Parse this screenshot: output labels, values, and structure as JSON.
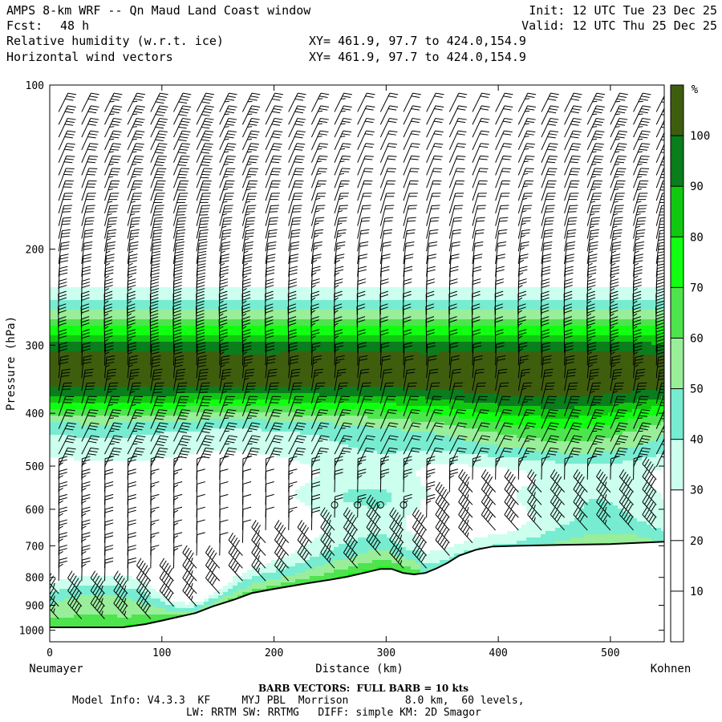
{
  "header": {
    "title": "AMPS 8-km WRF -- Qn Maud Land Coast window",
    "init": "Init: 12 UTC Tue 23 Dec 25",
    "fcst_label": "Fcst:",
    "fcst_value": "48 h",
    "valid": "Valid: 12 UTC Thu 25 Dec 25",
    "field1": "Relative humidity (w.r.t. ice)",
    "field1_xy": "XY= 461.9, 97.7 to 424.0,154.9",
    "field2": "Horizontal wind vectors",
    "field2_xy": "XY= 461.9, 97.7 to 424.0,154.9"
  },
  "chart_data": {
    "type": "heatmap",
    "title": "Relative humidity (w.r.t. ice) cross-section with horizontal wind vectors",
    "xlabel": "Distance (km)",
    "ylabel": "Pressure (hPa)",
    "x_range": [
      0,
      548
    ],
    "y_range": [
      100,
      1050
    ],
    "y_scale": "log",
    "x_ticks": [
      0,
      100,
      200,
      300,
      400,
      500
    ],
    "y_ticks": [
      100,
      200,
      300,
      400,
      500,
      600,
      700,
      800,
      900,
      1000
    ],
    "x_end_labels": {
      "left": "Neumayer",
      "right": "Kohnen"
    },
    "colorbar": {
      "unit": "%",
      "ticks": [
        10,
        20,
        30,
        40,
        50,
        60,
        70,
        80,
        90,
        100
      ],
      "bins": [
        {
          "min": 0,
          "max": 30,
          "color": "#ffffff"
        },
        {
          "min": 30,
          "max": 40,
          "color": "#ccffee"
        },
        {
          "min": 40,
          "max": 50,
          "color": "#77ecd0"
        },
        {
          "min": 50,
          "max": 60,
          "color": "#99ee99"
        },
        {
          "min": 60,
          "max": 70,
          "color": "#4ee44e"
        },
        {
          "min": 70,
          "max": 80,
          "color": "#11ff11"
        },
        {
          "min": 80,
          "max": 90,
          "color": "#11c811"
        },
        {
          "min": 90,
          "max": 100,
          "color": "#0a7d1c"
        },
        {
          "min": 100,
          "max": 110,
          "color": "#3e5e0e"
        }
      ]
    },
    "terrain_surface_hPa": [
      [
        0,
        988
      ],
      [
        65,
        988
      ],
      [
        85,
        975
      ],
      [
        100,
        960
      ],
      [
        115,
        945
      ],
      [
        130,
        930
      ],
      [
        145,
        905
      ],
      [
        165,
        878
      ],
      [
        180,
        855
      ],
      [
        200,
        840
      ],
      [
        215,
        830
      ],
      [
        230,
        820
      ],
      [
        250,
        808
      ],
      [
        265,
        798
      ],
      [
        280,
        785
      ],
      [
        295,
        772
      ],
      [
        305,
        772
      ],
      [
        315,
        785
      ],
      [
        325,
        790
      ],
      [
        335,
        785
      ],
      [
        345,
        770
      ],
      [
        355,
        752
      ],
      [
        365,
        730
      ],
      [
        380,
        712
      ],
      [
        395,
        702
      ],
      [
        420,
        700
      ],
      [
        460,
        697
      ],
      [
        500,
        695
      ],
      [
        548,
        688
      ]
    ],
    "wind_barb_note": "BARB VECTORS:  FULL BARB = 10 kts",
    "wind_barbs_summary": "Westerly barbs roughly 25-40 kts aloft (100-500 hPa), weaker winds mid-levels near 250-320 km with calm circles near 575-610 hPa, strong low-level easterlies 40-55 kts along the slope."
  },
  "footer": {
    "barb_note": "BARB VECTORS:  FULL BARB = 10 kts",
    "model_info": "Model Info: V4.3.3  KF     MYJ PBL  Morrison         8.0 km,  60 levels,",
    "physics": "LW: RRTM SW: RRTMG   DIFF: simple KM: 2D Smagor"
  }
}
